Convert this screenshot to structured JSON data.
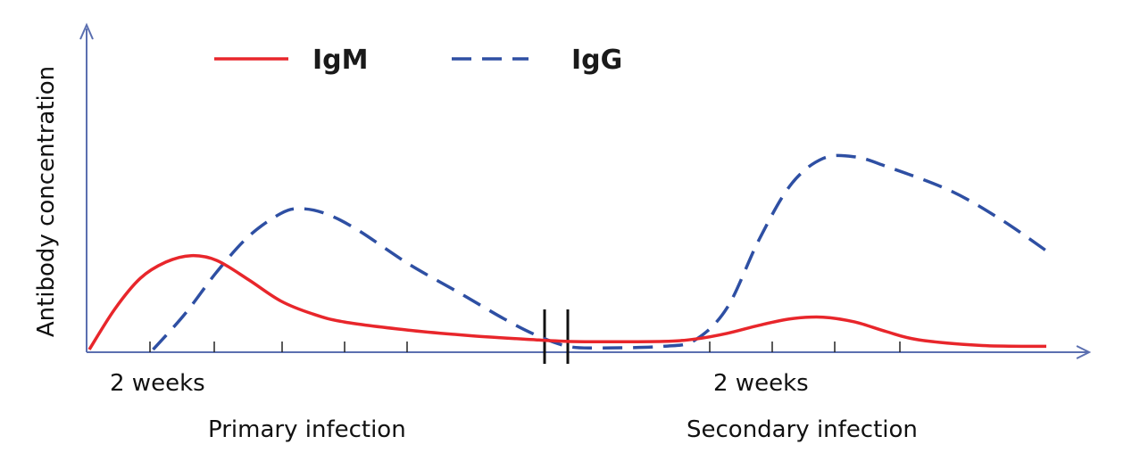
{
  "chart_data": {
    "type": "line",
    "ylabel": "Antibody concentration",
    "legend_position": "top-left",
    "x_annotations": {
      "primary_tick_label": "2 weeks",
      "secondary_tick_label": "2 weeks",
      "primary_phase_label": "Primary infection",
      "secondary_phase_label": "Secondary infection"
    },
    "axis_break": true,
    "x_range": [
      0,
      15
    ],
    "y_range": [
      0,
      1
    ],
    "series": [
      {
        "name": "IgM",
        "color": "#e8262b",
        "style": "solid",
        "points": [
          [
            0.0,
            0.0
          ],
          [
            0.4,
            0.25
          ],
          [
            0.8,
            0.44
          ],
          [
            1.2,
            0.54
          ],
          [
            1.6,
            0.58
          ],
          [
            2.0,
            0.55
          ],
          [
            2.5,
            0.43
          ],
          [
            3.0,
            0.3
          ],
          [
            3.5,
            0.22
          ],
          [
            4.0,
            0.17
          ],
          [
            5.0,
            0.12
          ],
          [
            6.0,
            0.085
          ],
          [
            7.0,
            0.06
          ],
          [
            7.5,
            0.05
          ],
          [
            8.0,
            0.048
          ],
          [
            9.0,
            0.05
          ],
          [
            9.5,
            0.065
          ],
          [
            10.0,
            0.1
          ],
          [
            10.5,
            0.15
          ],
          [
            11.0,
            0.19
          ],
          [
            11.5,
            0.2
          ],
          [
            12.0,
            0.17
          ],
          [
            12.5,
            0.11
          ],
          [
            13.0,
            0.06
          ],
          [
            14.0,
            0.025
          ],
          [
            15.0,
            0.02
          ]
        ]
      },
      {
        "name": "IgG",
        "color": "#2e4fa3",
        "style": "dashed",
        "points": [
          [
            1.0,
            0.0
          ],
          [
            1.5,
            0.22
          ],
          [
            2.0,
            0.48
          ],
          [
            2.5,
            0.7
          ],
          [
            3.0,
            0.84
          ],
          [
            3.3,
            0.87
          ],
          [
            3.7,
            0.84
          ],
          [
            4.2,
            0.74
          ],
          [
            5.0,
            0.53
          ],
          [
            5.8,
            0.35
          ],
          [
            6.5,
            0.19
          ],
          [
            7.0,
            0.09
          ],
          [
            7.5,
            0.02
          ],
          [
            8.0,
            0.01
          ],
          [
            9.0,
            0.02
          ],
          [
            9.5,
            0.06
          ],
          [
            10.0,
            0.26
          ],
          [
            10.5,
            0.68
          ],
          [
            11.0,
            1.02
          ],
          [
            11.5,
            1.18
          ],
          [
            12.0,
            1.19
          ],
          [
            12.5,
            1.13
          ],
          [
            13.5,
            0.98
          ],
          [
            14.3,
            0.8
          ],
          [
            15.0,
            0.61
          ]
        ]
      }
    ]
  }
}
